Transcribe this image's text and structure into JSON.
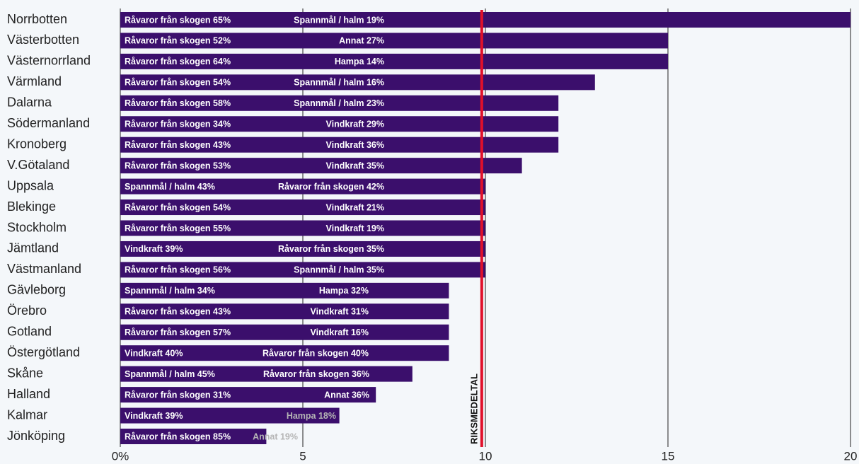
{
  "chart_data": {
    "type": "bar",
    "orientation": "horizontal",
    "categories": [
      "Norrbotten",
      "Västerbotten",
      "Västernorrland",
      "Värmland",
      "Dalarna",
      "Södermanland",
      "Kronoberg",
      "V.Götaland",
      "Uppsala",
      "Blekinge",
      "Stockholm",
      "Jämtland",
      "Västmanland",
      "Gävleborg",
      "Örebro",
      "Gotland",
      "Östergötland",
      "Skåne",
      "Halland",
      "Kalmar",
      "Jönköping"
    ],
    "values": [
      20,
      15,
      15,
      13,
      12,
      12,
      12,
      11,
      10,
      10,
      10,
      10,
      10,
      9,
      9,
      9,
      9,
      8,
      7,
      6,
      4
    ],
    "bar_labels": [
      [
        "Råvaror från skogen 65%",
        "Spannmål / halm 19%"
      ],
      [
        "Råvaror från skogen 52%",
        "Annat 27%"
      ],
      [
        "Råvaror från skogen 64%",
        "Hampa 14%"
      ],
      [
        "Råvaror från skogen 54%",
        "Spannmål / halm 16%"
      ],
      [
        "Råvaror från skogen 58%",
        "Spannmål / halm 23%"
      ],
      [
        "Råvaror från skogen 34%",
        "Vindkraft 29%"
      ],
      [
        "Råvaror från skogen 43%",
        "Vindkraft 36%"
      ],
      [
        "Råvaror från skogen 53%",
        "Vindkraft 35%"
      ],
      [
        "Spannmål / halm 43%",
        "Råvaror från skogen 42%"
      ],
      [
        "Råvaror från skogen 54%",
        "Vindkraft 21%"
      ],
      [
        "Råvaror från skogen 55%",
        "Vindkraft 19%"
      ],
      [
        "Vindkraft 39%",
        "Råvaror från skogen 35%"
      ],
      [
        "Råvaror från skogen 56%",
        "Spannmål / halm 35%"
      ],
      [
        "Spannmål / halm 34%",
        "Hampa 32%"
      ],
      [
        "Råvaror från skogen 43%",
        "Vindkraft 31%"
      ],
      [
        "Råvaror från skogen 57%",
        "Vindkraft 16%"
      ],
      [
        "Vindkraft 40%",
        "Råvaror från skogen 40%"
      ],
      [
        "Spannmål / halm 45%",
        "Råvaror från skogen 36%"
      ],
      [
        "Råvaror från skogen 31%",
        "Annat 36%"
      ],
      [
        "Vindkraft 39%",
        "Hampa 18%"
      ],
      [
        "Råvaror från skogen 85%",
        "Annat 19%"
      ]
    ],
    "color": "#3b0f6c",
    "xlim": [
      0,
      20
    ],
    "xticks": [
      {
        "value": 0,
        "label": "0%"
      },
      5,
      10,
      15,
      20
    ],
    "grid": true,
    "reference_line": {
      "value": 9.9,
      "label": "RIKSMEDELTAL",
      "color": "#e0102a"
    }
  }
}
